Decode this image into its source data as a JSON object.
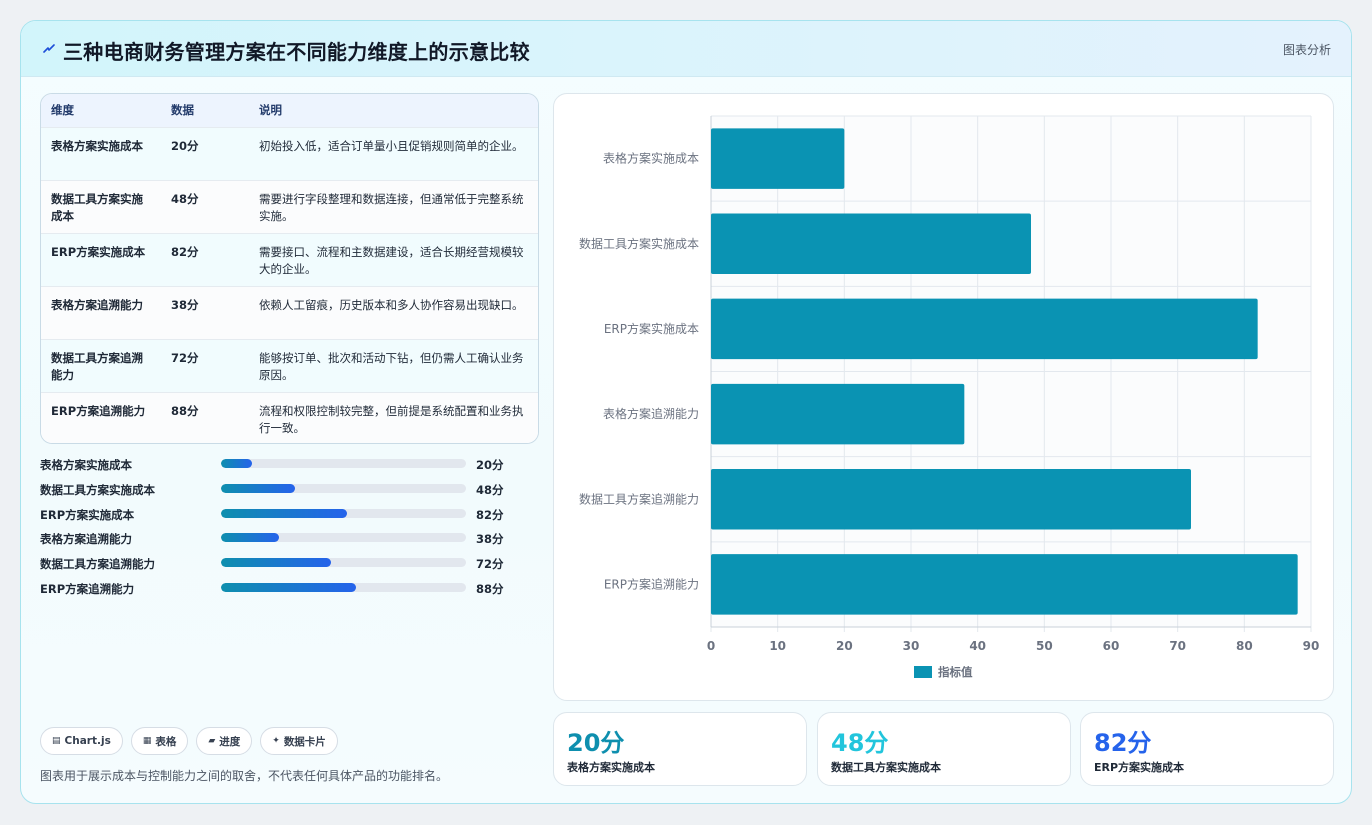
{
  "title": "三种电商财务管理方案在不同能力维度上的示意比较",
  "header_tag": "图表分析",
  "title_icon": "lightning-icon",
  "table": {
    "headers": [
      "维度",
      "数据",
      "说明"
    ],
    "rows": [
      {
        "dimension": "表格方案实施成本",
        "value": "20分",
        "note": "初始投入低，适合订单量小且促销规则简单的企业。"
      },
      {
        "dimension": "数据工具方案实施成本",
        "value": "48分",
        "note": "需要进行字段整理和数据连接，但通常低于完整系统实施。"
      },
      {
        "dimension": "ERP方案实施成本",
        "value": "82分",
        "note": "需要接口、流程和主数据建设，适合长期经营规模较大的企业。"
      },
      {
        "dimension": "表格方案追溯能力",
        "value": "38分",
        "note": "依赖人工留痕，历史版本和多人协作容易出现缺口。"
      },
      {
        "dimension": "数据工具方案追溯能力",
        "value": "72分",
        "note": "能够按订单、批次和活动下钻，但仍需人工确认业务原因。"
      },
      {
        "dimension": "ERP方案追溯能力",
        "value": "88分",
        "note": "流程和权限控制较完整，但前提是系统配置和业务执行一致。"
      }
    ]
  },
  "progress": [
    {
      "label": "表格方案实施成本",
      "value": 20,
      "display": "20分"
    },
    {
      "label": "数据工具方案实施成本",
      "value": 48,
      "display": "48分"
    },
    {
      "label": "ERP方案实施成本",
      "value": 82,
      "display": "82分"
    },
    {
      "label": "表格方案追溯能力",
      "value": 38,
      "display": "38分"
    },
    {
      "label": "数据工具方案追溯能力",
      "value": 72,
      "display": "72分"
    },
    {
      "label": "ERP方案追溯能力",
      "value": 88,
      "display": "88分"
    }
  ],
  "progress_max": 160,
  "chips": [
    {
      "icon": "chart-icon",
      "glyph": "▤",
      "label": "Chart.js"
    },
    {
      "icon": "table-icon",
      "glyph": "▦",
      "label": "表格"
    },
    {
      "icon": "progress-icon",
      "glyph": "▰",
      "label": "进度"
    },
    {
      "icon": "sparkle-icon",
      "glyph": "✦",
      "label": "数据卡片"
    }
  ],
  "footnote": "图表用于展示成本与控制能力之间的取舍，不代表任何具体产品的功能排名。",
  "stats": [
    {
      "value": "20分",
      "label": "表格方案实施成本",
      "color": "#0e8fae"
    },
    {
      "value": "48分",
      "label": "数据工具方案实施成本",
      "color": "#22c5dc"
    },
    {
      "value": "82分",
      "label": "ERP方案实施成本",
      "color": "#2563eb"
    }
  ],
  "chart_data": {
    "type": "bar",
    "orientation": "horizontal",
    "categories": [
      "表格方案实施成本",
      "数据工具方案实施成本",
      "ERP方案实施成本",
      "表格方案追溯能力",
      "数据工具方案追溯能力",
      "ERP方案追溯能力"
    ],
    "series": [
      {
        "name": "指标值",
        "values": [
          20,
          48,
          82,
          38,
          72,
          88
        ],
        "color": "#0a93b3"
      }
    ],
    "xlim": [
      0,
      90
    ],
    "xticks": [
      0,
      10,
      20,
      30,
      40,
      50,
      60,
      70,
      80,
      90
    ],
    "grid": true,
    "legend_position": "bottom"
  }
}
